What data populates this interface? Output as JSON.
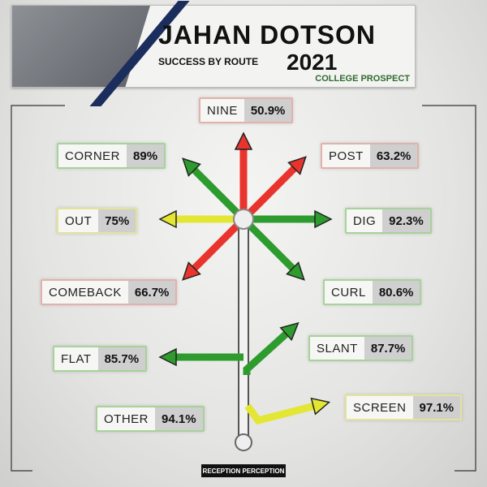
{
  "header": {
    "first_name": "JAHAN",
    "last_name": "DOTSON",
    "subtitle": "SUCCESS BY ROUTE",
    "year": "2021",
    "tag": "COLLEGE PROSPECT"
  },
  "routes": [
    {
      "name": "NINE",
      "value": "50.9%"
    },
    {
      "name": "CORNER",
      "value": "89%"
    },
    {
      "name": "POST",
      "value": "63.2%"
    },
    {
      "name": "OUT",
      "value": "75%"
    },
    {
      "name": "DIG",
      "value": "92.3%"
    },
    {
      "name": "COMEBACK",
      "value": "66.7%"
    },
    {
      "name": "CURL",
      "value": "80.6%"
    },
    {
      "name": "FLAT",
      "value": "85.7%"
    },
    {
      "name": "SLANT",
      "value": "87.7%"
    },
    {
      "name": "OTHER",
      "value": "94.1%"
    },
    {
      "name": "SCREEN",
      "value": "97.1%"
    }
  ],
  "footer": {
    "logo": "RECEPTION PERCEPTION"
  }
}
